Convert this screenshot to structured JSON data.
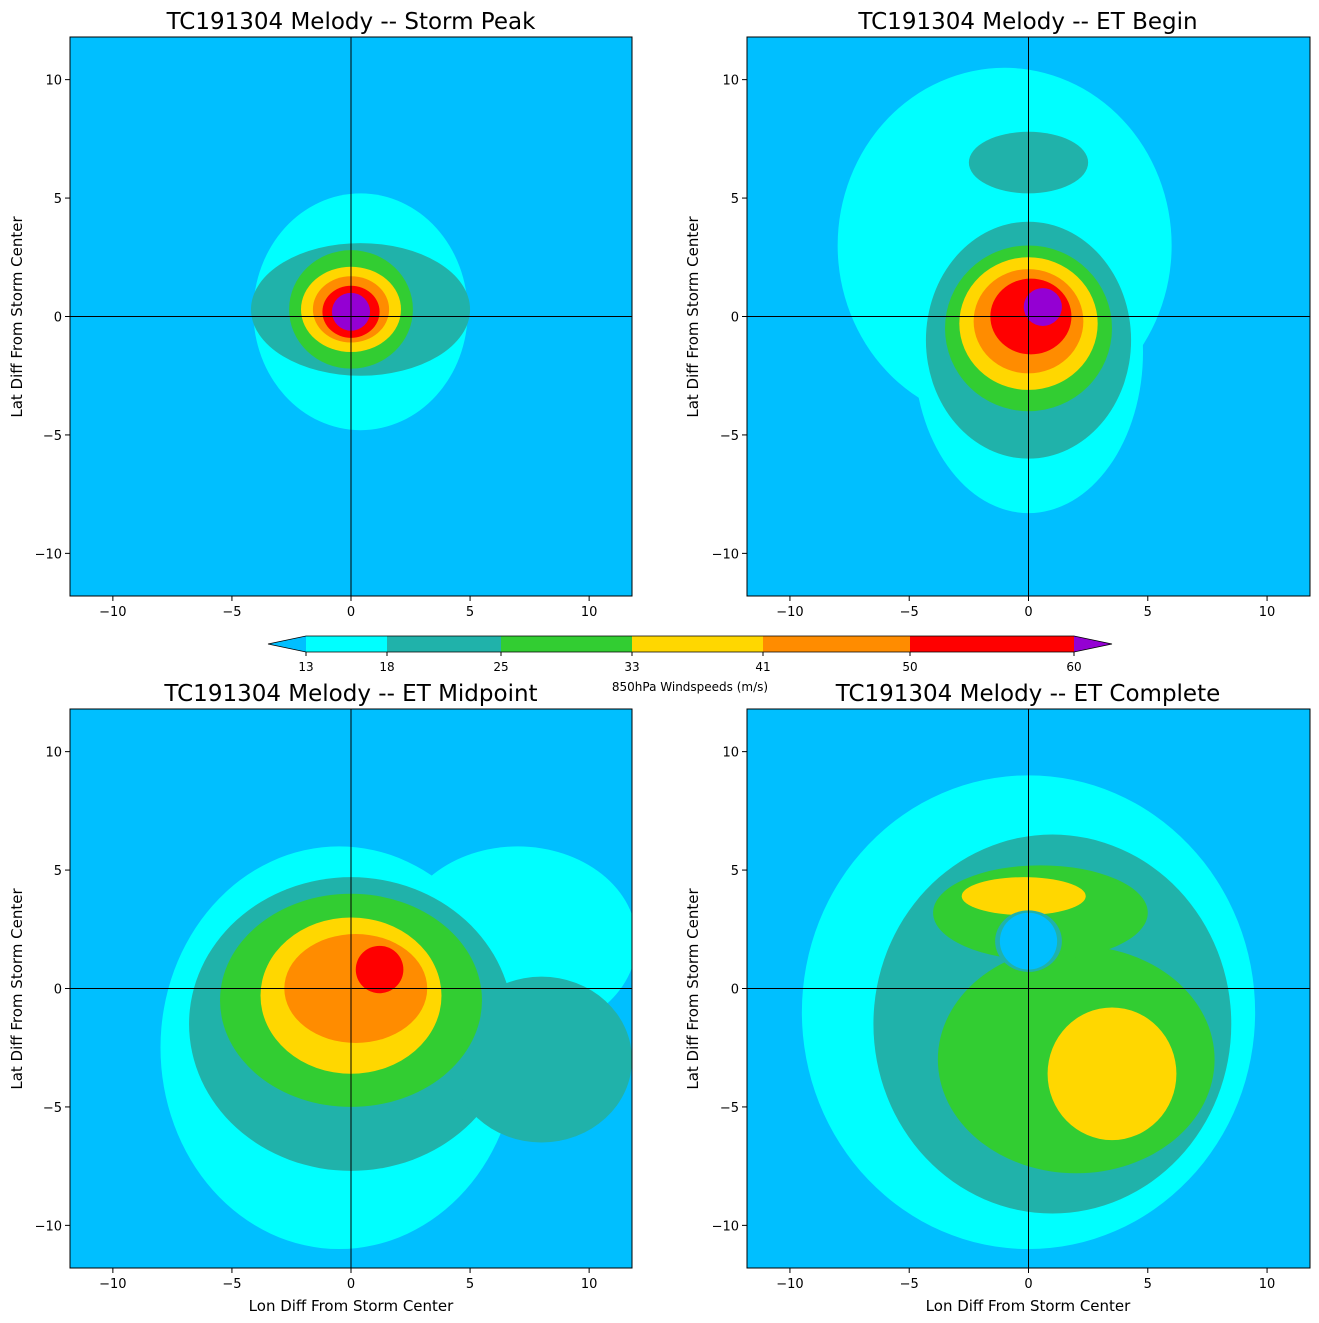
{
  "figure": {
    "colorbar": {
      "label": "850hPa Windspeeds (m/s)",
      "levels": [
        13,
        18,
        25,
        33,
        41,
        50,
        60
      ],
      "tick_labels": [
        "13",
        "18",
        "25",
        "33",
        "41",
        "50",
        "60"
      ],
      "colors": {
        "below": "#00bfff",
        "bands": [
          "#00ffff",
          "#20b2aa",
          "#32cd32",
          "#ffd700",
          "#ff8c00",
          "#ff0000"
        ],
        "above": "#9400d3"
      }
    },
    "axis_color": "#000000",
    "crosshair_color": "#000000"
  },
  "chart_data": [
    {
      "type": "heatmap",
      "title": "TC191304 Melody -- Storm Peak",
      "xlabel": "",
      "ylabel": "Lat Diff From Storm Center",
      "xlim": [
        -11.8,
        11.8
      ],
      "ylim": [
        -11.8,
        11.8
      ],
      "xticks": [
        -10,
        -5,
        0,
        5,
        10
      ],
      "yticks": [
        -10,
        -5,
        0,
        5,
        10
      ],
      "xtick_labels": [
        "−10",
        "−5",
        "0",
        "5",
        "10"
      ],
      "ytick_labels": [
        "−10",
        "−5",
        "0",
        "5",
        "10"
      ],
      "background_value": "<13",
      "contours": [
        {
          "min": 13,
          "cx": 0.4,
          "cy": 0.2,
          "rx": 4.5,
          "ry": 5.0
        },
        {
          "min": 18,
          "cx": 0.4,
          "cy": 0.3,
          "rx": 4.6,
          "ry": 2.8
        },
        {
          "min": 25,
          "cx": 0.0,
          "cy": 0.3,
          "rx": 2.6,
          "ry": 2.5
        },
        {
          "min": 33,
          "cx": 0.0,
          "cy": 0.3,
          "rx": 2.1,
          "ry": 1.8
        },
        {
          "min": 41,
          "cx": 0.0,
          "cy": 0.3,
          "rx": 1.6,
          "ry": 1.4
        },
        {
          "min": 50,
          "cx": 0.0,
          "cy": 0.2,
          "rx": 1.2,
          "ry": 1.1
        },
        {
          "min": 60,
          "cx": 0.0,
          "cy": 0.2,
          "rx": 0.8,
          "ry": 0.8
        }
      ]
    },
    {
      "type": "heatmap",
      "title": "TC191304 Melody -- ET Begin",
      "xlabel": "",
      "ylabel": "Lat Diff From Storm Center",
      "xlim": [
        -11.8,
        11.8
      ],
      "ylim": [
        -11.8,
        11.8
      ],
      "xticks": [
        -10,
        -5,
        0,
        5,
        10
      ],
      "yticks": [
        -10,
        -5,
        0,
        5,
        10
      ],
      "xtick_labels": [
        "−10",
        "−5",
        "0",
        "5",
        "10"
      ],
      "ytick_labels": [
        "−10",
        "−5",
        "0",
        "5",
        "10"
      ],
      "background_value": "<13",
      "contours": [
        {
          "min": 13,
          "cx": -1.0,
          "cy": 3.0,
          "rx": 7.0,
          "ry": 7.5
        },
        {
          "min": 13,
          "cx": 0.0,
          "cy": -1.5,
          "rx": 4.8,
          "ry": 6.8
        },
        {
          "min": 18,
          "cx": 0.0,
          "cy": 6.5,
          "rx": 2.5,
          "ry": 1.3
        },
        {
          "min": 18,
          "cx": 0.0,
          "cy": -1.0,
          "rx": 4.3,
          "ry": 5.0
        },
        {
          "min": 25,
          "cx": 0.0,
          "cy": -0.5,
          "rx": 3.5,
          "ry": 3.5
        },
        {
          "min": 33,
          "cx": 0.0,
          "cy": -0.3,
          "rx": 2.9,
          "ry": 2.8
        },
        {
          "min": 41,
          "cx": 0.0,
          "cy": -0.2,
          "rx": 2.3,
          "ry": 2.2
        },
        {
          "min": 50,
          "cx": 0.1,
          "cy": 0.0,
          "rx": 1.7,
          "ry": 1.6
        },
        {
          "min": 60,
          "cx": 0.6,
          "cy": 0.4,
          "rx": 0.8,
          "ry": 0.8
        }
      ]
    },
    {
      "type": "heatmap",
      "title": "TC191304 Melody -- ET Midpoint",
      "xlabel": "Lon Diff From Storm Center",
      "ylabel": "Lat Diff From Storm Center",
      "xlim": [
        -11.8,
        11.8
      ],
      "ylim": [
        -11.8,
        11.8
      ],
      "xticks": [
        -10,
        -5,
        0,
        5,
        10
      ],
      "yticks": [
        -10,
        -5,
        0,
        5,
        10
      ],
      "xtick_labels": [
        "−10",
        "−5",
        "0",
        "5",
        "10"
      ],
      "ytick_labels": [
        "−10",
        "−5",
        "0",
        "5",
        "10"
      ],
      "background_value": "<13",
      "contours": [
        {
          "min": 13,
          "cx": -0.5,
          "cy": -2.5,
          "rx": 7.5,
          "ry": 8.5
        },
        {
          "min": 13,
          "cx": 7.0,
          "cy": 2.0,
          "rx": 5.0,
          "ry": 4.0
        },
        {
          "min": 18,
          "cx": 0.0,
          "cy": -1.5,
          "rx": 6.8,
          "ry": 6.2
        },
        {
          "min": 18,
          "cx": 8.0,
          "cy": -3.0,
          "rx": 3.8,
          "ry": 3.5
        },
        {
          "min": 25,
          "cx": 0.0,
          "cy": -0.5,
          "rx": 5.5,
          "ry": 4.5
        },
        {
          "min": 33,
          "cx": 0.0,
          "cy": -0.3,
          "rx": 3.8,
          "ry": 3.3
        },
        {
          "min": 41,
          "cx": 0.2,
          "cy": 0.0,
          "rx": 3.0,
          "ry": 2.3
        },
        {
          "min": 50,
          "cx": 1.2,
          "cy": 0.8,
          "rx": 1.0,
          "ry": 1.0
        }
      ]
    },
    {
      "type": "heatmap",
      "title": "TC191304 Melody -- ET Complete",
      "xlabel": "Lon Diff From Storm Center",
      "ylabel": "Lat Diff From Storm Center",
      "xlim": [
        -11.8,
        11.8
      ],
      "ylim": [
        -11.8,
        11.8
      ],
      "xticks": [
        -10,
        -5,
        0,
        5,
        10
      ],
      "yticks": [
        -10,
        -5,
        0,
        5,
        10
      ],
      "xtick_labels": [
        "−10",
        "−5",
        "0",
        "5",
        "10"
      ],
      "ytick_labels": [
        "−10",
        "−5",
        "0",
        "5",
        "10"
      ],
      "background_value": "<13",
      "contours": [
        {
          "min": 13,
          "cx": 0.0,
          "cy": -1.0,
          "rx": 9.5,
          "ry": 10.0
        },
        {
          "min": 18,
          "cx": 1.0,
          "cy": -1.5,
          "rx": 7.5,
          "ry": 8.0
        },
        {
          "min": 25,
          "cx": 2.0,
          "cy": -3.0,
          "rx": 5.8,
          "ry": 4.8
        },
        {
          "min": 25,
          "cx": 0.5,
          "cy": 3.2,
          "rx": 4.5,
          "ry": 2.0
        },
        {
          "min": 33,
          "cx": 3.5,
          "cy": -3.6,
          "rx": 2.7,
          "ry": 2.8
        },
        {
          "min": 33,
          "cx": -0.2,
          "cy": 3.9,
          "rx": 2.6,
          "ry": 0.8
        },
        {
          "min": 18,
          "cx": 0.0,
          "cy": 2.0,
          "rx": 1.4,
          "ry": 1.3
        },
        {
          "min": 0,
          "cx": 0.0,
          "cy": 2.0,
          "rx": 1.2,
          "ry": 1.2
        }
      ]
    }
  ]
}
